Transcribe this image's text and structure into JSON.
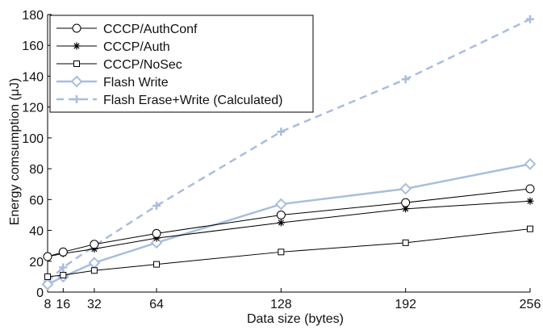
{
  "chart_data": {
    "type": "line",
    "title": "",
    "xlabel": "Data size (bytes)",
    "ylabel": "Energy comsumption (μJ)",
    "xlim": [
      8,
      256
    ],
    "ylim": [
      0,
      180
    ],
    "x_ticks": [
      8,
      16,
      32,
      64,
      128,
      192,
      256
    ],
    "y_ticks": [
      0,
      20,
      40,
      60,
      80,
      100,
      120,
      140,
      160,
      180
    ],
    "grid": false,
    "legend_position": "top-left",
    "series": [
      {
        "name": "CCCP/AuthConf",
        "marker": "circle",
        "style": "solid",
        "color": "#000000",
        "x": [
          8,
          16,
          32,
          64,
          128,
          192,
          256
        ],
        "values": [
          23,
          26,
          31,
          38,
          50,
          58,
          67
        ]
      },
      {
        "name": "CCCP/Auth",
        "marker": "asterisk",
        "style": "solid",
        "color": "#000000",
        "x": [
          8,
          16,
          32,
          64,
          128,
          192,
          256
        ],
        "values": [
          23,
          25,
          28,
          35,
          45,
          54,
          59
        ]
      },
      {
        "name": "CCCP/NoSec",
        "marker": "square",
        "style": "solid",
        "color": "#000000",
        "x": [
          8,
          16,
          32,
          64,
          128,
          192,
          256
        ],
        "values": [
          10,
          11,
          14,
          18,
          26,
          32,
          41
        ]
      },
      {
        "name": "Flash Write",
        "marker": "diamond",
        "style": "solid",
        "color": "#a9bedd",
        "x": [
          8,
          16,
          32,
          64,
          128,
          192,
          256
        ],
        "values": [
          5,
          10,
          19,
          32,
          57,
          67,
          83
        ]
      },
      {
        "name": "Flash Erase+Write (Calculated)",
        "marker": "plus",
        "style": "dashed",
        "color": "#a9bedd",
        "x": [
          8,
          16,
          32,
          64,
          128,
          192,
          256
        ],
        "values": [
          7,
          16,
          30,
          56,
          104,
          138,
          177
        ]
      }
    ]
  }
}
